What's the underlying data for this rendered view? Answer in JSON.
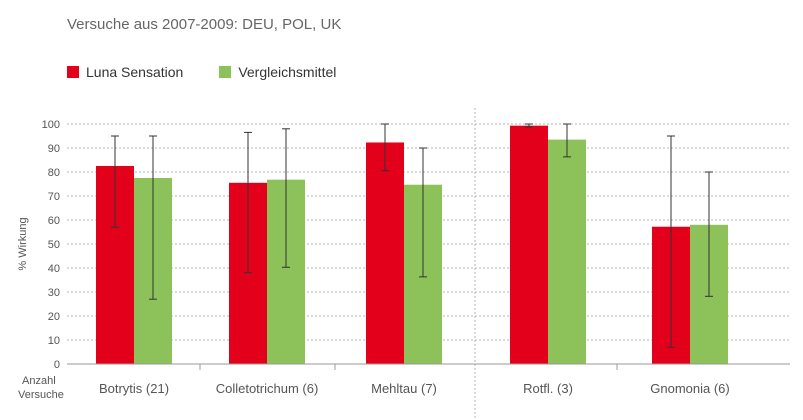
{
  "subtitle": "Versuche aus 2007-2009: DEU, POL, UK",
  "colors": {
    "luna": "#e3001b",
    "vergleich": "#8dc159",
    "grid": "#b5b5b5",
    "axis": "#999999",
    "text": "#555555"
  },
  "chart_data": {
    "type": "bar",
    "ylabel": "% Wirkung",
    "xlabel": "Anzahl Versuche",
    "ylim": [
      0,
      100
    ],
    "yticks": [
      0,
      10,
      20,
      30,
      40,
      50,
      60,
      70,
      80,
      90,
      100
    ],
    "grid": true,
    "legend_position": "top-left",
    "categories": [
      "Botrytis (21)",
      "Colletotrichum (6)",
      "Mehltau (7)",
      "Rotfl. (3)",
      "Gnomonia (6)"
    ],
    "series": [
      {
        "name": "Luna Sensation",
        "color": "#e3001b",
        "values": [
          82.5,
          75.5,
          92.3,
          99.3,
          57.2
        ],
        "error_low": [
          57,
          38,
          80.5,
          98.8,
          7
        ],
        "error_high": [
          95,
          96.5,
          100,
          100,
          95
        ]
      },
      {
        "name": "Vergleichsmittel",
        "color": "#8dc159",
        "values": [
          77.5,
          76.8,
          74.7,
          93.5,
          58
        ],
        "error_low": [
          27,
          40.3,
          36.3,
          86.3,
          28.2
        ],
        "error_high": [
          95,
          98,
          90,
          100,
          80
        ]
      }
    ]
  }
}
